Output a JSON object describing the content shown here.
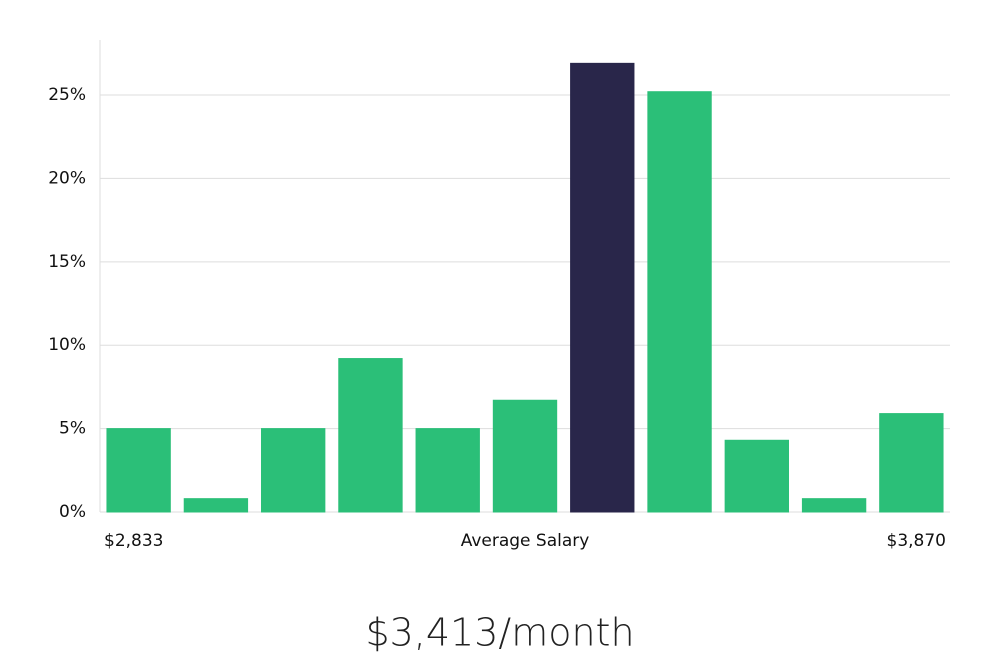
{
  "chart_data": {
    "type": "bar",
    "categories": [
      null,
      null,
      null,
      null,
      null,
      null,
      null,
      null,
      null,
      null,
      null
    ],
    "values": [
      5.0,
      0.8,
      5.0,
      9.2,
      5.0,
      6.7,
      26.9,
      25.2,
      4.3,
      0.8,
      5.9
    ],
    "colors": [
      "#2bbf78",
      "#2bbf78",
      "#2bbf78",
      "#2bbf78",
      "#2bbf78",
      "#2bbf78",
      "#29264a",
      "#2bbf78",
      "#2bbf78",
      "#2bbf78",
      "#2bbf78"
    ],
    "ylim": [
      0,
      28.3
    ],
    "yticks": [
      {
        "value": 0,
        "label": "0%"
      },
      {
        "value": 5,
        "label": "5%"
      },
      {
        "value": 10,
        "label": "10%"
      },
      {
        "value": 15,
        "label": "15%"
      },
      {
        "value": 20,
        "label": "20%"
      },
      {
        "value": 25,
        "label": "25%"
      }
    ],
    "grid": true,
    "x_label_left": "$2,833",
    "xlabel": "Average Salary",
    "x_label_right": "$3,870",
    "subtitle": "$3,413/month"
  }
}
